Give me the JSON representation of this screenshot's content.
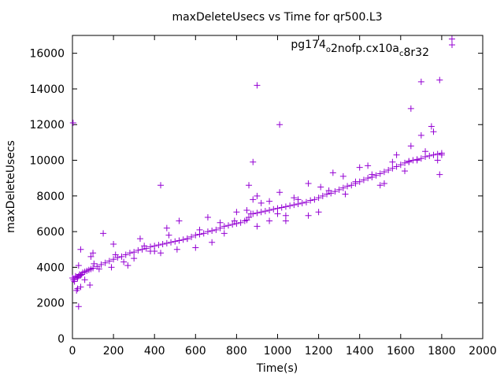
{
  "chart_data": {
    "type": "scatter",
    "title": "maxDeleteUsecs vs Time for qr500.L3",
    "xlabel": "Time(s)",
    "ylabel": "maxDeleteUsecs",
    "xlim": [
      0,
      2000
    ],
    "ylim": [
      0,
      17000
    ],
    "x_ticks": [
      "0",
      "200",
      "400",
      "600",
      "800",
      "1000",
      "1200",
      "1400",
      "1600",
      "1800",
      "2000"
    ],
    "y_ticks": [
      "0",
      "2000",
      "4000",
      "6000",
      "8000",
      "10000",
      "12000",
      "14000",
      "16000"
    ],
    "legend_position": "top-right",
    "grid": false,
    "series_color": "#9400d3",
    "series": [
      {
        "name": "pg174_o2nofp.cx10a_c8r32",
        "x": [
          0,
          5,
          10,
          15,
          20,
          25,
          30,
          35,
          40,
          45,
          50,
          60,
          70,
          80,
          90,
          100,
          120,
          140,
          160,
          180,
          200,
          220,
          240,
          260,
          280,
          300,
          320,
          340,
          360,
          380,
          400,
          420,
          440,
          460,
          480,
          500,
          520,
          540,
          560,
          580,
          600,
          620,
          640,
          660,
          680,
          700,
          720,
          740,
          760,
          780,
          800,
          820,
          840,
          850,
          860,
          870,
          880,
          900,
          920,
          940,
          960,
          980,
          1000,
          1020,
          1040,
          1060,
          1080,
          1100,
          1120,
          1140,
          1160,
          1180,
          1200,
          1220,
          1240,
          1260,
          1280,
          1300,
          1320,
          1340,
          1360,
          1380,
          1400,
          1420,
          1440,
          1460,
          1480,
          1500,
          1520,
          1540,
          1560,
          1580,
          1600,
          1620,
          1640,
          1660,
          1680,
          1700,
          1720,
          1740,
          1760,
          1780,
          1800,
          1800,
          40,
          85,
          90,
          105,
          130,
          190,
          210,
          250,
          300,
          350,
          380,
          430,
          470,
          510,
          560,
          620,
          680,
          740,
          790,
          850,
          860,
          880,
          900,
          920,
          960,
          1010,
          1040,
          1100,
          1150,
          1200,
          1250,
          1320,
          1380,
          1440,
          1500,
          1560,
          1620,
          1650,
          1680,
          1720,
          1760,
          1790,
          20,
          25,
          30,
          40,
          60,
          100,
          150,
          200,
          270,
          330,
          400,
          460,
          520,
          600,
          660,
          720,
          800,
          900,
          960,
          1000,
          1040,
          1080,
          1150,
          1210,
          1270,
          1330,
          1400,
          1460,
          1520,
          1580,
          1640,
          1700,
          1750,
          1780,
          3,
          900,
          1010,
          1650,
          1700,
          1790,
          1850,
          430,
          880,
          30
        ],
        "y": [
          3400,
          3300,
          3200,
          3500,
          3450,
          3400,
          3500,
          3600,
          3550,
          3600,
          3700,
          3750,
          3800,
          3850,
          3900,
          3950,
          4050,
          4150,
          4250,
          4350,
          4450,
          4550,
          4600,
          4700,
          4800,
          4850,
          4950,
          5000,
          5050,
          5150,
          5200,
          5250,
          5300,
          5350,
          5400,
          5450,
          5500,
          5550,
          5600,
          5700,
          5800,
          5850,
          5900,
          6000,
          6050,
          6100,
          6200,
          6300,
          6350,
          6400,
          6450,
          6500,
          6600,
          6650,
          6800,
          7000,
          7000,
          7050,
          7100,
          7150,
          7200,
          7250,
          7300,
          7350,
          7400,
          7450,
          7500,
          7550,
          7600,
          7650,
          7750,
          7800,
          7900,
          8000,
          8100,
          8150,
          8250,
          8350,
          8450,
          8550,
          8600,
          8700,
          8800,
          8900,
          9000,
          9050,
          9150,
          9250,
          9350,
          9450,
          9550,
          9650,
          9750,
          9850,
          9950,
          10000,
          10050,
          10100,
          10200,
          10250,
          10300,
          10350,
          10400,
          10300,
          2900,
          3000,
          4600,
          4200,
          3900,
          4000,
          4700,
          4300,
          4500,
          5200,
          4900,
          4800,
          5800,
          5000,
          5600,
          6100,
          5400,
          5900,
          6600,
          7200,
          8600,
          7800,
          6300,
          7600,
          6600,
          8200,
          6900,
          7800,
          8700,
          7100,
          8300,
          9100,
          8800,
          9700,
          8600,
          9900,
          9400,
          10800,
          10000,
          10500,
          11600,
          9200,
          2700,
          2800,
          4100,
          5000,
          3300,
          4800,
          5900,
          5300,
          4100,
          5600,
          4900,
          6200,
          6600,
          5100,
          6800,
          6500,
          7100,
          8000,
          7700,
          7000,
          6600,
          7900,
          6900,
          8500,
          9300,
          8100,
          9600,
          9200,
          8700,
          10300,
          9900,
          11400,
          11900,
          10000,
          12100,
          14200,
          12000,
          12900,
          14400,
          14500,
          16800,
          8600,
          9900,
          1800
        ]
      }
    ]
  }
}
